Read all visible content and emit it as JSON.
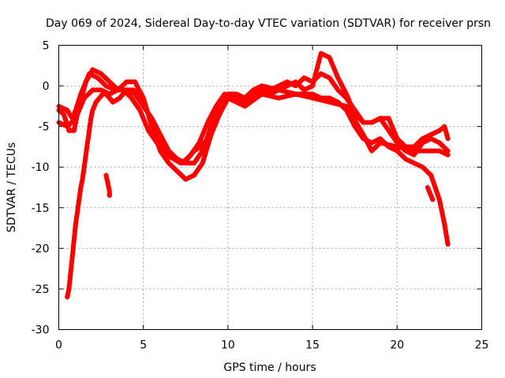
{
  "chart_data": {
    "type": "scatter",
    "title": "Day 069 of 2024, Sidereal Day-to-day VTEC variation (SDTVAR) for receiver prsn",
    "xlabel": "GPS time / hours",
    "ylabel": "SDTVAR / TECUs",
    "xlim": [
      0,
      25
    ],
    "ylim": [
      -30,
      5
    ],
    "xticks": [
      0,
      5,
      10,
      15,
      20,
      25
    ],
    "yticks": [
      -30,
      -25,
      -20,
      -15,
      -10,
      -5,
      0,
      5
    ],
    "grid": true,
    "marker": "+",
    "color": "#ff0000",
    "series": [
      {
        "name": "track-1",
        "points": [
          [
            0,
            -3
          ],
          [
            0.3,
            -3.5
          ],
          [
            0.6,
            -5.5
          ],
          [
            0.9,
            -5.5
          ],
          [
            1.2,
            -2.5
          ],
          [
            1.6,
            0.5
          ],
          [
            2.0,
            2.0
          ],
          [
            2.5,
            1.5
          ],
          [
            3.0,
            0.5
          ],
          [
            3.5,
            -0.5
          ],
          [
            4.0,
            0.5
          ],
          [
            4.5,
            0.5
          ],
          [
            5.0,
            -1.5
          ],
          [
            5.5,
            -5.0
          ],
          [
            6.0,
            -8.0
          ],
          [
            6.5,
            -9.5
          ],
          [
            7.0,
            -10.5
          ],
          [
            7.5,
            -11.5
          ],
          [
            8.0,
            -11.0
          ],
          [
            8.5,
            -9.5
          ],
          [
            9.0,
            -6.0
          ],
          [
            9.5,
            -3.5
          ],
          [
            10.0,
            -1.5
          ],
          [
            10.5,
            -1.5
          ],
          [
            11.0,
            -2.0
          ],
          [
            11.5,
            -1.0
          ],
          [
            12.0,
            -0.5
          ],
          [
            12.5,
            -1.0
          ],
          [
            13.0,
            -0.5
          ],
          [
            14.0,
            -1.0
          ],
          [
            15.0,
            -1.0
          ],
          [
            15.5,
            -1.5
          ],
          [
            16.0,
            -1.5
          ],
          [
            16.5,
            -2.0
          ],
          [
            17.0,
            -3.0
          ],
          [
            17.5,
            -5.0
          ],
          [
            18.0,
            -6.5
          ],
          [
            18.5,
            -7.0
          ],
          [
            19.0,
            -6.5
          ],
          [
            19.5,
            -7.5
          ],
          [
            20.0,
            -8.0
          ],
          [
            20.5,
            -9.0
          ],
          [
            21.0,
            -9.5
          ],
          [
            21.5,
            -10.0
          ],
          [
            22.0,
            -11.0
          ],
          [
            22.5,
            -14.0
          ],
          [
            22.8,
            -17.0
          ],
          [
            23.0,
            -19.5
          ]
        ]
      },
      {
        "name": "track-2",
        "points": [
          [
            0,
            -4.5
          ],
          [
            0.5,
            -5.0
          ],
          [
            1.0,
            -4.0
          ],
          [
            1.5,
            -1.5
          ],
          [
            2.0,
            -0.5
          ],
          [
            2.5,
            -0.5
          ],
          [
            3.0,
            -1.0
          ],
          [
            3.5,
            -0.5
          ],
          [
            4.0,
            -0.5
          ],
          [
            4.5,
            -1.0
          ],
          [
            5.0,
            -2.5
          ],
          [
            5.5,
            -4.0
          ],
          [
            6.0,
            -6.0
          ],
          [
            6.5,
            -8.0
          ],
          [
            7.0,
            -9.0
          ],
          [
            7.5,
            -9.5
          ],
          [
            8.0,
            -9.5
          ],
          [
            8.5,
            -8.0
          ],
          [
            9.0,
            -5.0
          ],
          [
            9.5,
            -3.0
          ],
          [
            10.0,
            -1.0
          ],
          [
            10.5,
            -1.0
          ],
          [
            11.0,
            -1.5
          ],
          [
            11.5,
            -0.5
          ],
          [
            12.0,
            0.0
          ],
          [
            13.0,
            -0.5
          ],
          [
            14.0,
            0.5
          ],
          [
            14.5,
            -0.5
          ],
          [
            15.0,
            0.0
          ],
          [
            15.5,
            4.0
          ],
          [
            16.0,
            3.5
          ],
          [
            16.5,
            1.0
          ],
          [
            17.0,
            -1.0
          ],
          [
            17.5,
            -3.5
          ],
          [
            18.0,
            -4.5
          ],
          [
            18.5,
            -4.5
          ],
          [
            19.0,
            -4.0
          ],
          [
            19.5,
            -5.5
          ],
          [
            20.0,
            -7.0
          ],
          [
            20.5,
            -8.0
          ],
          [
            21.0,
            -8.5
          ],
          [
            21.5,
            -7.0
          ],
          [
            22.0,
            -6.5
          ],
          [
            22.5,
            -7.0
          ],
          [
            23.0,
            -8.0
          ]
        ]
      },
      {
        "name": "track-3",
        "points": [
          [
            0,
            -2.5
          ],
          [
            0.5,
            -3.0
          ],
          [
            0.8,
            -4.0
          ],
          [
            1.0,
            -3.0
          ],
          [
            1.3,
            -1.0
          ],
          [
            1.8,
            1.5
          ],
          [
            2.3,
            1.0
          ],
          [
            2.8,
            0.0
          ],
          [
            3.3,
            -0.5
          ],
          [
            3.8,
            -0.5
          ],
          [
            4.3,
            -1.5
          ],
          [
            4.8,
            -3.0
          ],
          [
            5.3,
            -5.5
          ],
          [
            5.8,
            -7.0
          ],
          [
            6.3,
            -8.5
          ],
          [
            6.8,
            -9.0
          ],
          [
            7.3,
            -9.5
          ],
          [
            7.8,
            -8.5
          ],
          [
            8.3,
            -7.0
          ],
          [
            8.8,
            -4.5
          ],
          [
            9.3,
            -2.5
          ],
          [
            9.8,
            -1.0
          ],
          [
            10.5,
            -2.0
          ],
          [
            11.0,
            -2.0
          ],
          [
            11.5,
            -1.0
          ],
          [
            12.0,
            -0.5
          ],
          [
            12.5,
            -0.5
          ],
          [
            13.0,
            0.0
          ],
          [
            13.5,
            0.5
          ],
          [
            14.0,
            0.0
          ],
          [
            14.5,
            1.0
          ],
          [
            15.0,
            0.5
          ],
          [
            15.5,
            1.5
          ],
          [
            16.0,
            1.0
          ],
          [
            16.5,
            -0.5
          ],
          [
            17.0,
            -1.5
          ],
          [
            17.5,
            -3.0
          ],
          [
            18.0,
            -4.5
          ],
          [
            18.5,
            -4.5
          ],
          [
            19.0,
            -4.0
          ],
          [
            19.5,
            -4.0
          ],
          [
            20.0,
            -6.5
          ],
          [
            20.5,
            -7.5
          ],
          [
            21.0,
            -7.5
          ],
          [
            21.5,
            -6.5
          ],
          [
            22.0,
            -6.0
          ],
          [
            22.5,
            -5.5
          ],
          [
            22.8,
            -5.0
          ],
          [
            23.0,
            -6.5
          ]
        ]
      },
      {
        "name": "track-4",
        "points": [
          [
            0.5,
            -26.0
          ],
          [
            0.6,
            -25.0
          ],
          [
            0.7,
            -23.0
          ],
          [
            0.8,
            -21.0
          ],
          [
            0.9,
            -19.0
          ],
          [
            1.0,
            -17.0
          ],
          [
            1.1,
            -15.5
          ],
          [
            1.2,
            -14.0
          ],
          [
            1.3,
            -12.5
          ],
          [
            1.4,
            -11.5
          ],
          [
            1.5,
            -10.0
          ],
          [
            1.6,
            -8.5
          ],
          [
            1.7,
            -7.0
          ],
          [
            1.8,
            -5.5
          ],
          [
            1.9,
            -4.0
          ],
          [
            2.0,
            -3.0
          ],
          [
            2.2,
            -2.0
          ],
          [
            2.4,
            -1.5
          ],
          [
            2.6,
            -1.0
          ],
          [
            2.8,
            -1.0
          ],
          [
            3.2,
            -2.0
          ],
          [
            3.6,
            -1.5
          ],
          [
            4.0,
            -0.5
          ],
          [
            4.4,
            -0.5
          ],
          [
            4.8,
            -1.0
          ],
          [
            5.2,
            -3.0
          ],
          [
            5.6,
            -5.0
          ],
          [
            6.0,
            -7.0
          ],
          [
            6.4,
            -8.0
          ],
          [
            6.8,
            -9.0
          ],
          [
            7.2,
            -9.5
          ],
          [
            7.6,
            -9.0
          ],
          [
            8.0,
            -8.0
          ],
          [
            8.4,
            -7.5
          ],
          [
            8.8,
            -6.5
          ],
          [
            9.2,
            -4.0
          ],
          [
            9.6,
            -2.0
          ],
          [
            10.0,
            -1.5
          ],
          [
            11.0,
            -2.5
          ],
          [
            12.0,
            -1.0
          ],
          [
            13.0,
            -1.5
          ],
          [
            14.0,
            -1.0
          ],
          [
            15.0,
            -1.5
          ],
          [
            16.0,
            -2.0
          ],
          [
            17.0,
            -2.5
          ],
          [
            18.0,
            -6.0
          ],
          [
            18.5,
            -8.0
          ],
          [
            19.0,
            -7.0
          ],
          [
            20.0,
            -7.5
          ],
          [
            21.0,
            -8.0
          ],
          [
            22.0,
            -8.0
          ],
          [
            22.5,
            -8.0
          ],
          [
            23.0,
            -8.5
          ]
        ]
      },
      {
        "name": "isolated-1",
        "points": [
          [
            2.8,
            -11.0
          ],
          [
            2.85,
            -11.5
          ],
          [
            2.9,
            -12.0
          ],
          [
            2.95,
            -12.5
          ],
          [
            3.0,
            -13.0
          ],
          [
            3.0,
            -13.5
          ]
        ]
      },
      {
        "name": "isolated-2",
        "points": [
          [
            21.8,
            -12.5
          ],
          [
            21.9,
            -13.0
          ],
          [
            22.0,
            -13.5
          ],
          [
            22.1,
            -14.0
          ]
        ]
      }
    ]
  }
}
